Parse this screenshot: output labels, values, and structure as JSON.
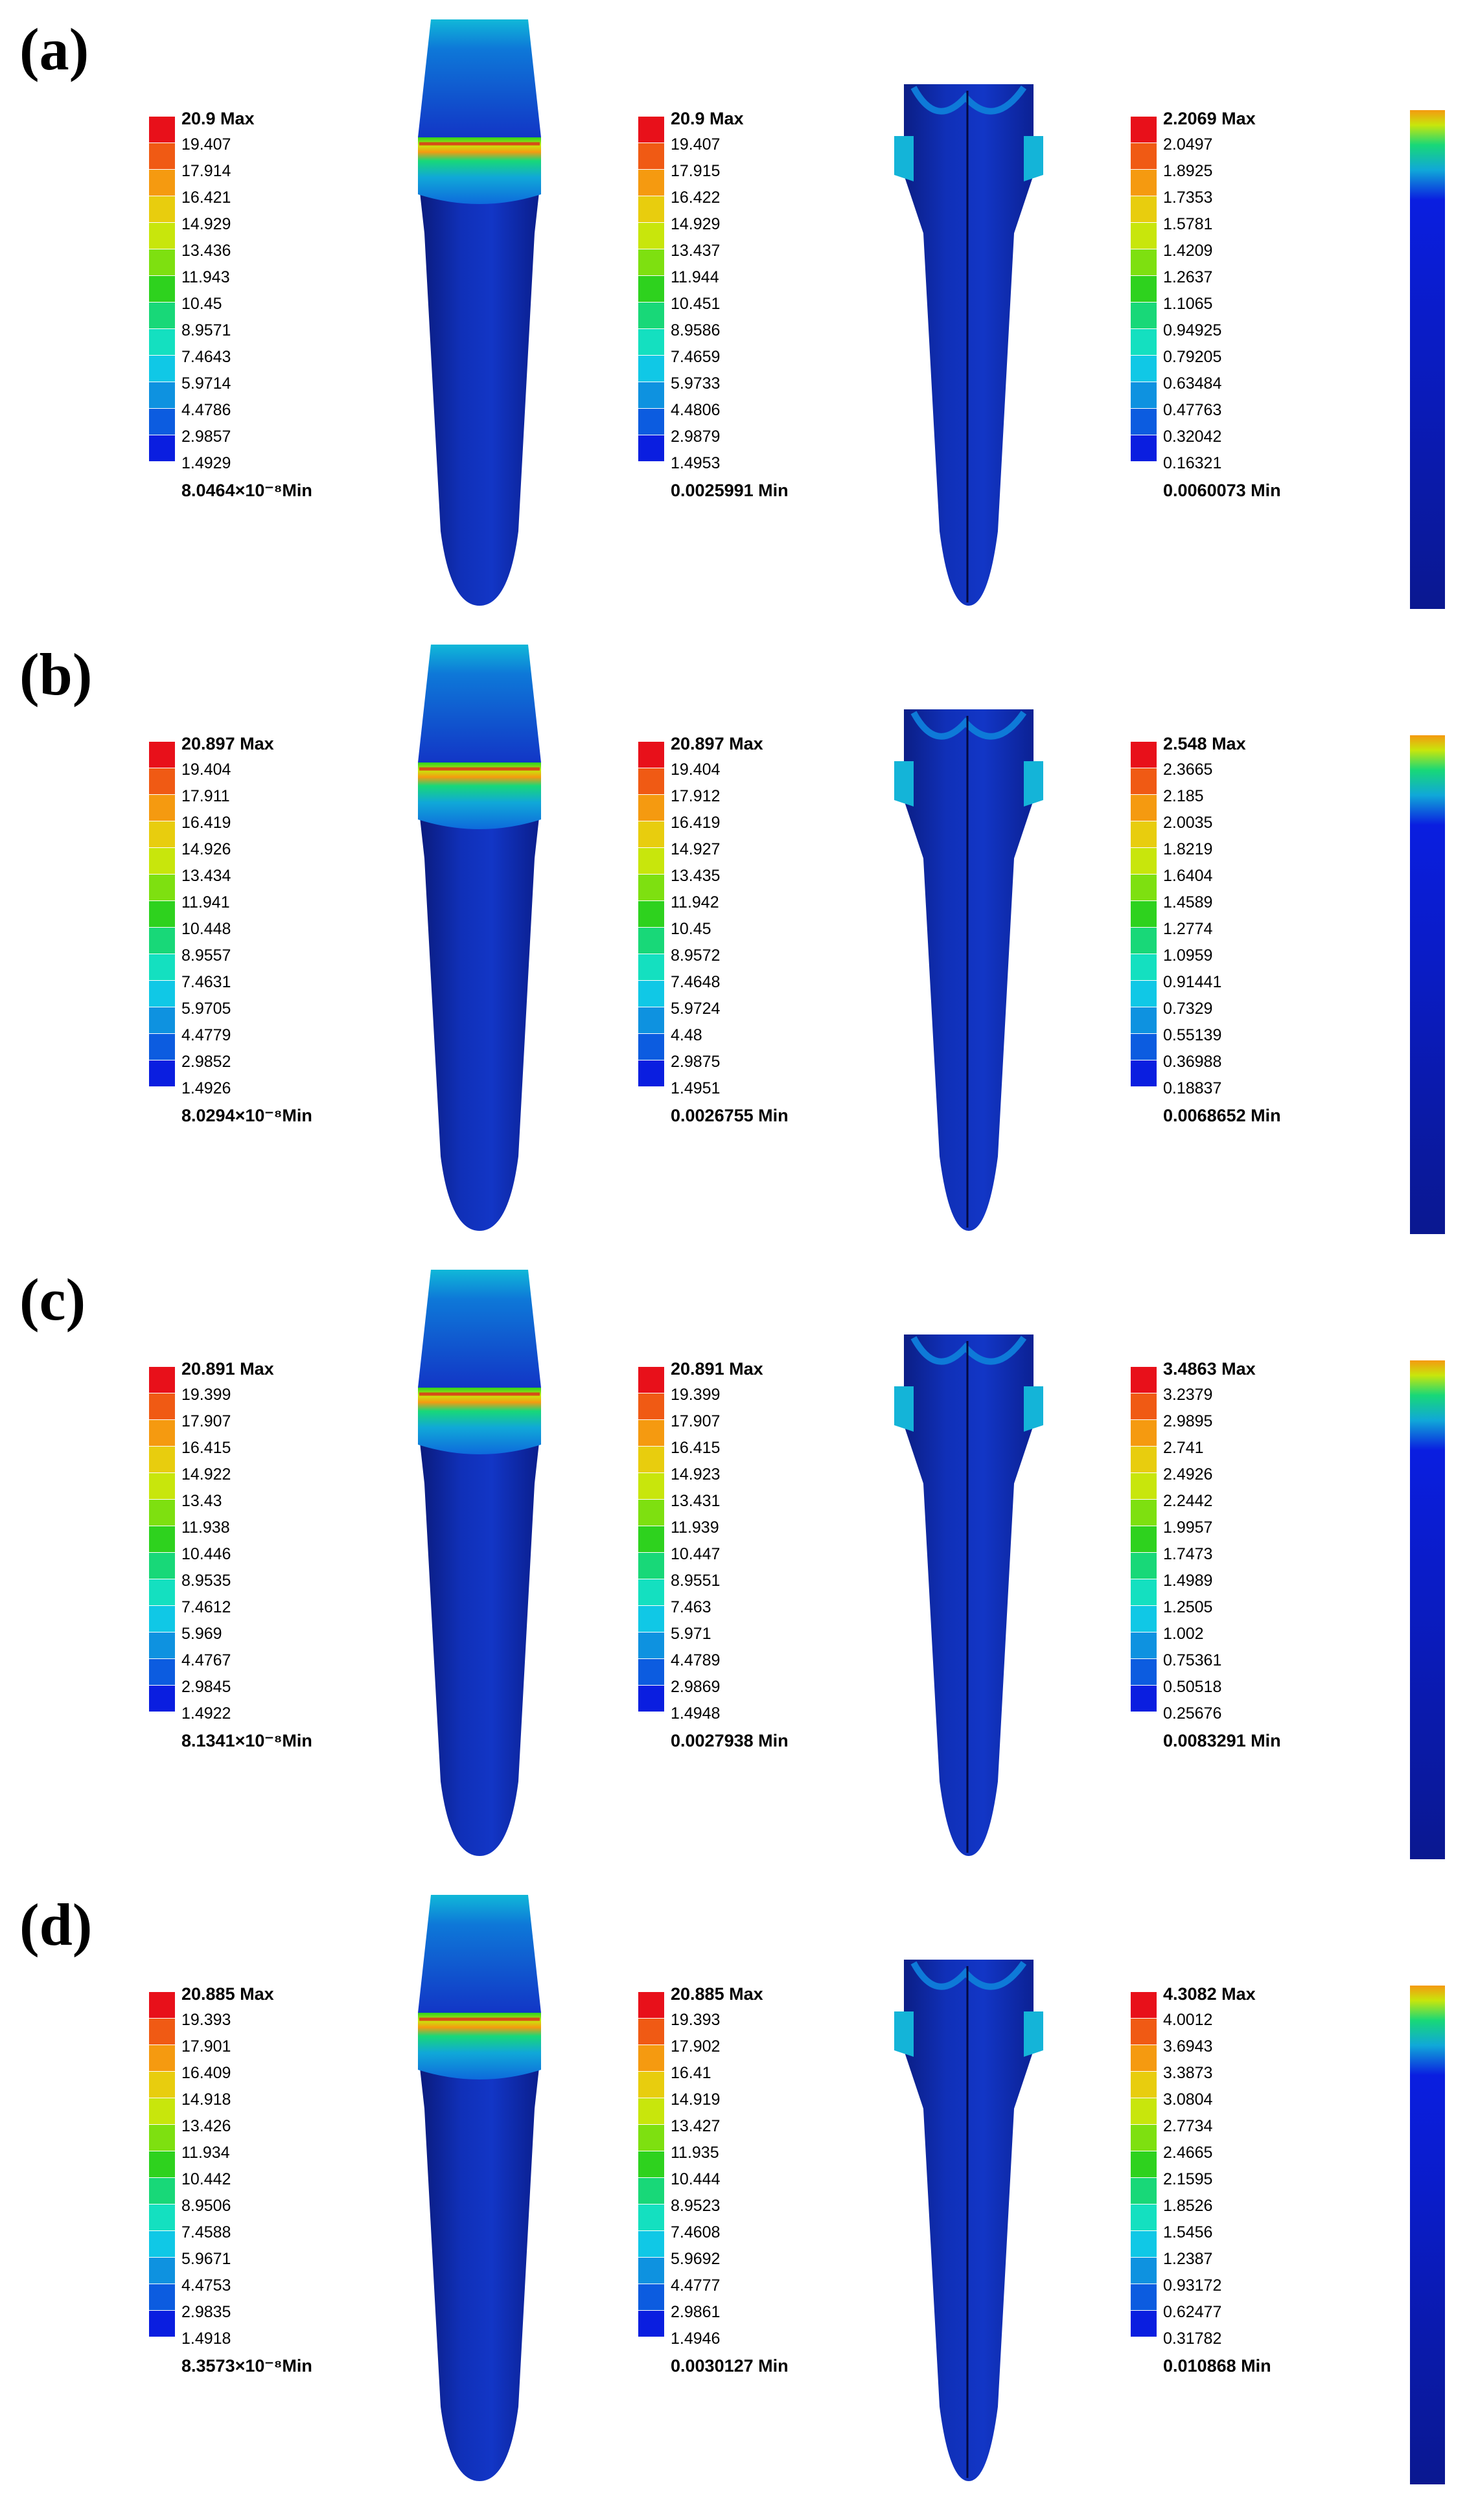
{
  "colormap": [
    "#e8101a",
    "#f05a14",
    "#f59a10",
    "#e8cd0e",
    "#c8e60c",
    "#7ee010",
    "#2ed21e",
    "#18d878",
    "#14e0c0",
    "#10c8e6",
    "#0e92e0",
    "#0c5ce0",
    "#0a1ee0"
  ],
  "panels": [
    {
      "label": "(a)",
      "legends": [
        {
          "max": "20.9 Max",
          "values": [
            "19.407",
            "17.914",
            "16.421",
            "14.929",
            "13.436",
            "11.943",
            "10.45",
            "8.9571",
            "7.4643",
            "5.9714",
            "4.4786",
            "2.9857",
            "1.4929"
          ],
          "min": "8.0464×10⁻⁸Min"
        },
        {
          "max": "20.9 Max",
          "values": [
            "19.407",
            "17.915",
            "16.422",
            "14.929",
            "13.437",
            "11.944",
            "10.451",
            "8.9586",
            "7.4659",
            "5.9733",
            "4.4806",
            "2.9879",
            "1.4953"
          ],
          "min": "0.0025991 Min"
        },
        {
          "max": "2.2069 Max",
          "values": [
            "2.0497",
            "1.8925",
            "1.7353",
            "1.5781",
            "1.4209",
            "1.2637",
            "1.1065",
            "0.94925",
            "0.79205",
            "0.63484",
            "0.47763",
            "0.32042",
            "0.16321"
          ],
          "min": "0.0060073 Min"
        }
      ]
    },
    {
      "label": "(b)",
      "legends": [
        {
          "max": "20.897 Max",
          "values": [
            "19.404",
            "17.911",
            "16.419",
            "14.926",
            "13.434",
            "11.941",
            "10.448",
            "8.9557",
            "7.4631",
            "5.9705",
            "4.4779",
            "2.9852",
            "1.4926"
          ],
          "min": "8.0294×10⁻⁸Min"
        },
        {
          "max": "20.897 Max",
          "values": [
            "19.404",
            "17.912",
            "16.419",
            "14.927",
            "13.435",
            "11.942",
            "10.45",
            "8.9572",
            "7.4648",
            "5.9724",
            "4.48",
            "2.9875",
            "1.4951"
          ],
          "min": "0.0026755 Min"
        },
        {
          "max": "2.548 Max",
          "values": [
            "2.3665",
            "2.185",
            "2.0035",
            "1.8219",
            "1.6404",
            "1.4589",
            "1.2774",
            "1.0959",
            "0.91441",
            "0.7329",
            "0.55139",
            "0.36988",
            "0.18837"
          ],
          "min": "0.0068652 Min"
        }
      ]
    },
    {
      "label": "(c)",
      "legends": [
        {
          "max": "20.891 Max",
          "values": [
            "19.399",
            "17.907",
            "16.415",
            "14.922",
            "13.43",
            "11.938",
            "10.446",
            "8.9535",
            "7.4612",
            "5.969",
            "4.4767",
            "2.9845",
            "1.4922"
          ],
          "min": "8.1341×10⁻⁸Min"
        },
        {
          "max": "20.891 Max",
          "values": [
            "19.399",
            "17.907",
            "16.415",
            "14.923",
            "13.431",
            "11.939",
            "10.447",
            "8.9551",
            "7.463",
            "5.971",
            "4.4789",
            "2.9869",
            "1.4948"
          ],
          "min": "0.0027938 Min"
        },
        {
          "max": "3.4863 Max",
          "values": [
            "3.2379",
            "2.9895",
            "2.741",
            "2.4926",
            "2.2442",
            "1.9957",
            "1.7473",
            "1.4989",
            "1.2505",
            "1.002",
            "0.75361",
            "0.50518",
            "0.25676"
          ],
          "min": "0.0083291 Min"
        }
      ]
    },
    {
      "label": "(d)",
      "legends": [
        {
          "max": "20.885 Max",
          "values": [
            "19.393",
            "17.901",
            "16.409",
            "14.918",
            "13.426",
            "11.934",
            "10.442",
            "8.9506",
            "7.4588",
            "5.9671",
            "4.4753",
            "2.9835",
            "1.4918"
          ],
          "min": "8.3573×10⁻⁸Min"
        },
        {
          "max": "20.885 Max",
          "values": [
            "19.393",
            "17.902",
            "16.41",
            "14.919",
            "13.427",
            "11.935",
            "10.444",
            "8.9523",
            "7.4608",
            "5.9692",
            "4.4777",
            "2.9861",
            "1.4946"
          ],
          "min": "0.0030127 Min"
        },
        {
          "max": "4.3082 Max",
          "values": [
            "4.0012",
            "3.6943",
            "3.3873",
            "3.0804",
            "2.7734",
            "2.4665",
            "2.1595",
            "1.8526",
            "1.5456",
            "1.2387",
            "0.93172",
            "0.62477",
            "0.31782"
          ],
          "min": "0.010868 Min"
        }
      ]
    }
  ]
}
